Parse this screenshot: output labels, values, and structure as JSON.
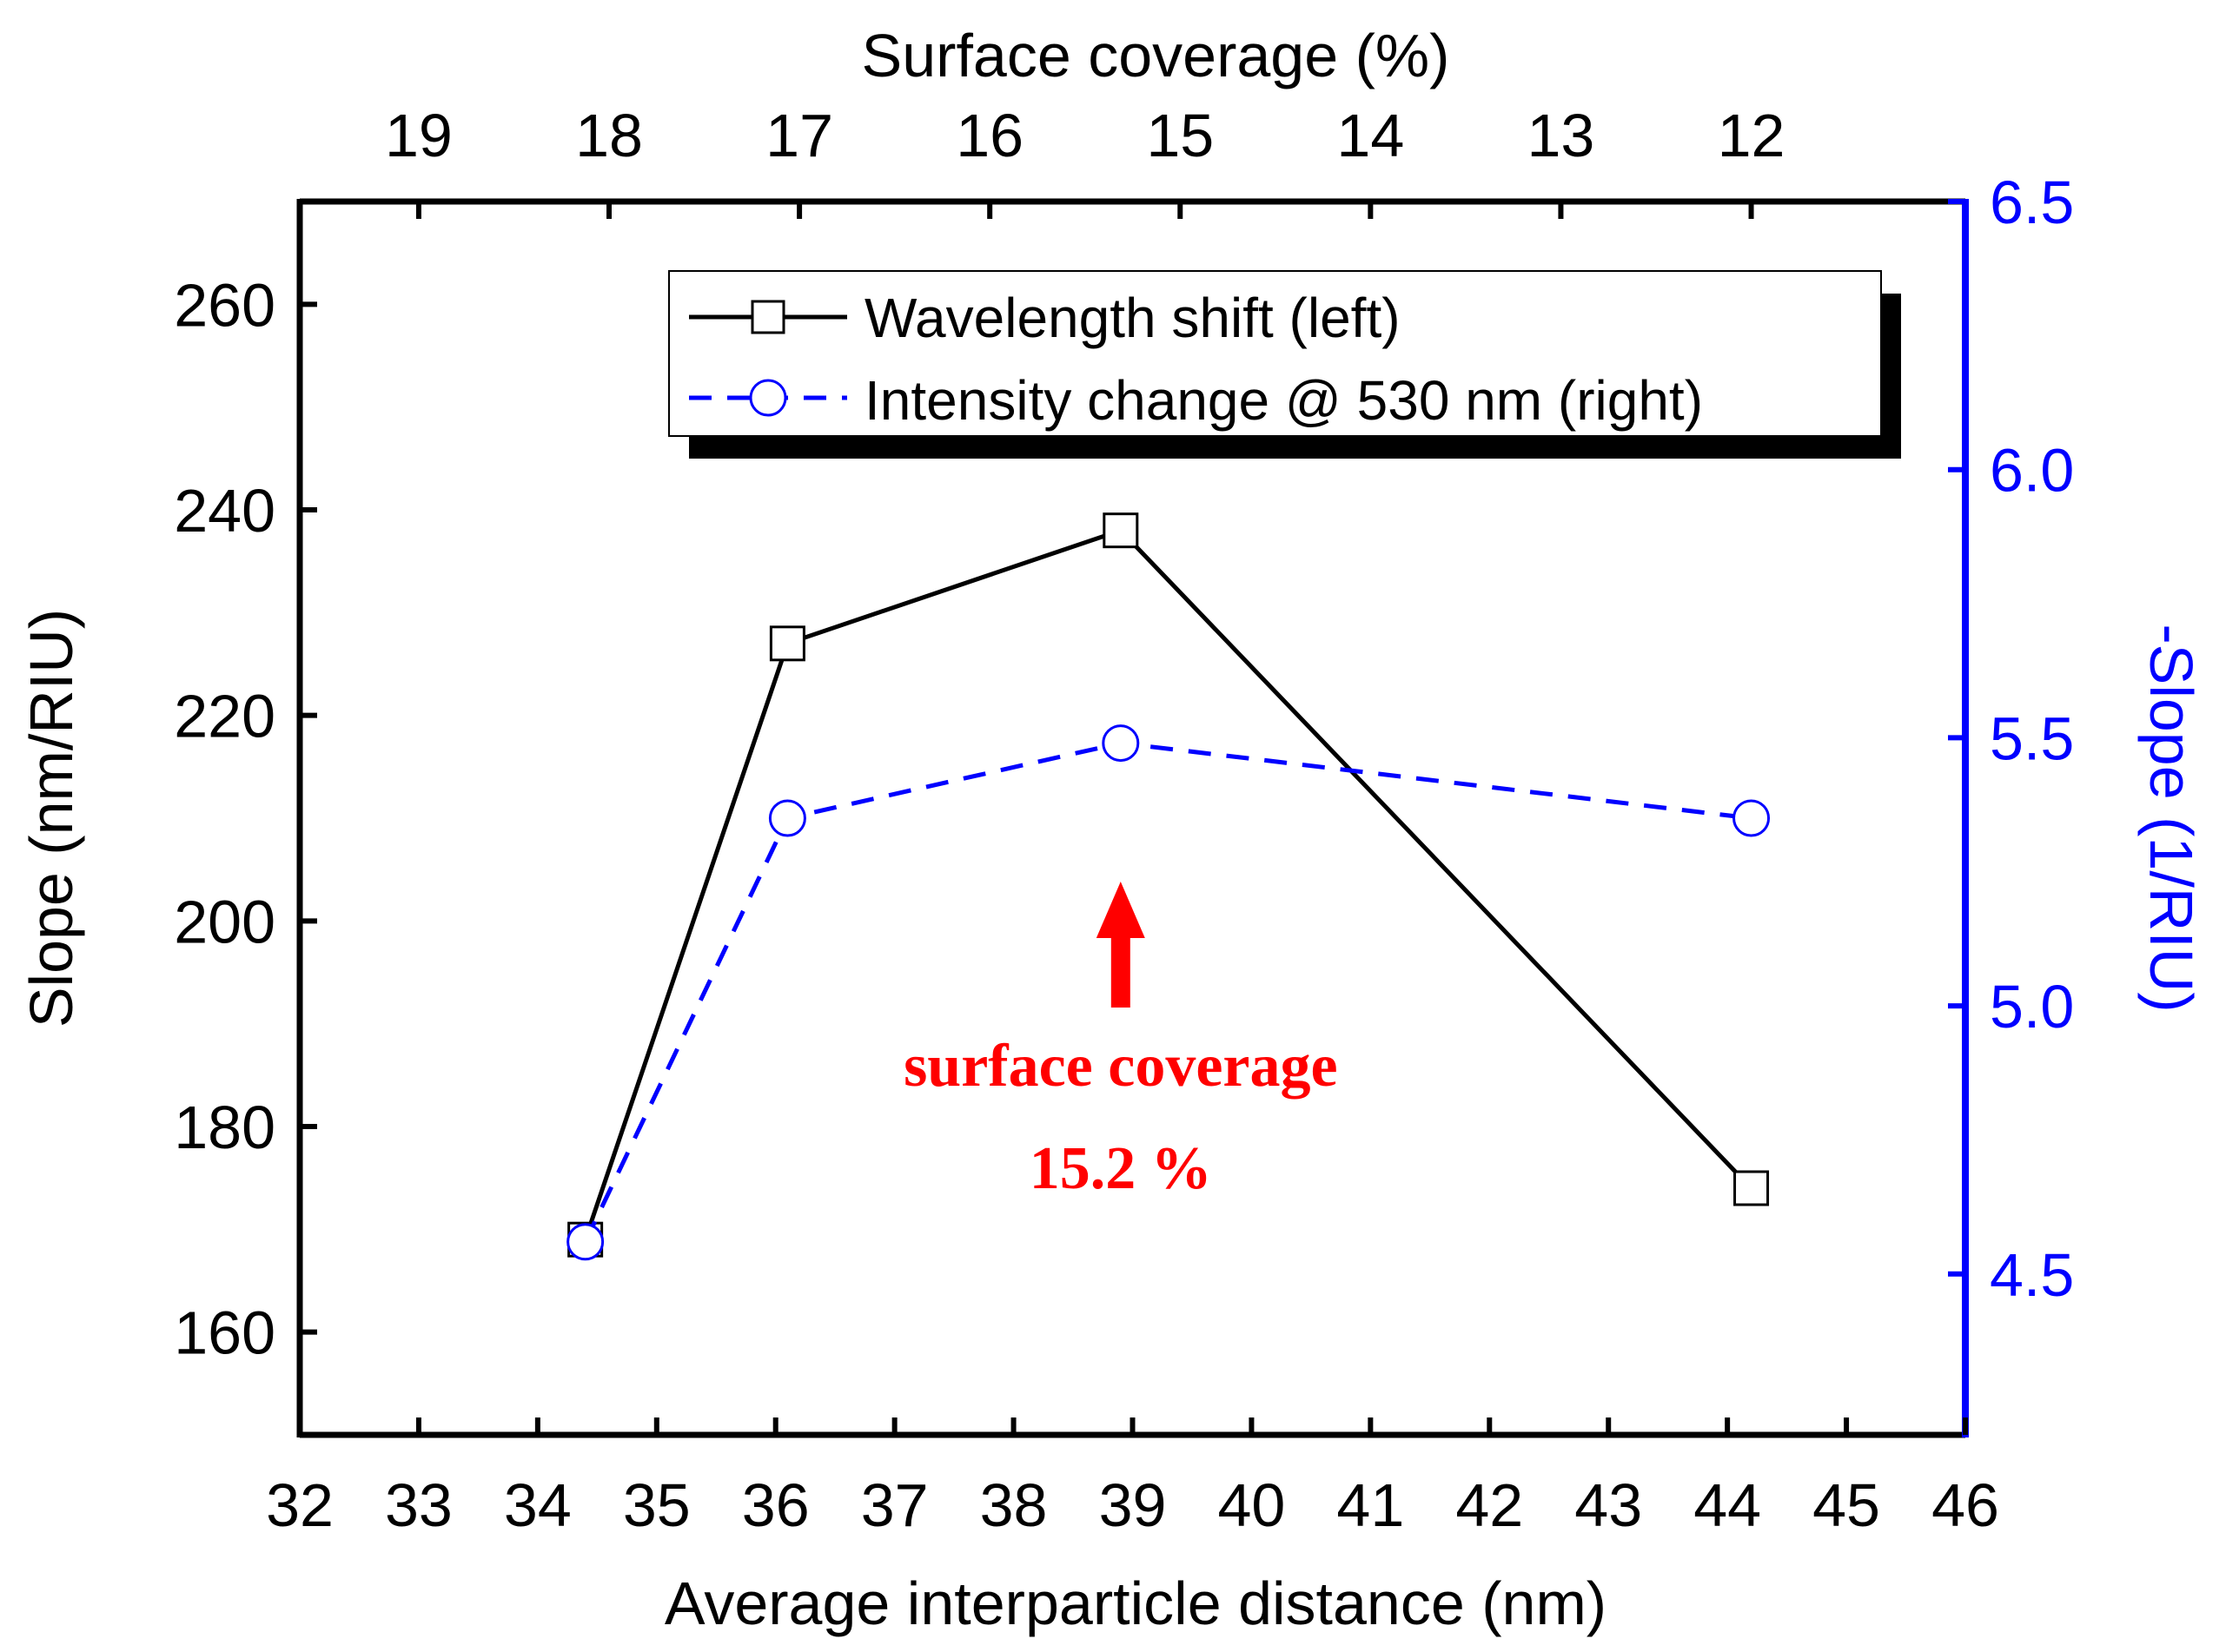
{
  "chart_data": {
    "type": "line",
    "xlabel": "Average interparticle distance (nm)",
    "x_top_label": "Surface coverage (%)",
    "ylabel_left": "Slope (nm/RIU)",
    "ylabel_right": "-Slope (1/RIU)",
    "xlim": [
      32,
      46
    ],
    "ylim_left": [
      150,
      270
    ],
    "ylim_right": [
      4.2,
      6.5
    ],
    "x_ticks": [
      32,
      33,
      34,
      35,
      36,
      37,
      38,
      39,
      40,
      41,
      42,
      43,
      44,
      45,
      46
    ],
    "top_ticks": [
      {
        "label": "19",
        "x": 33.0
      },
      {
        "label": "18",
        "x": 34.6
      },
      {
        "label": "17",
        "x": 36.2
      },
      {
        "label": "16",
        "x": 37.8
      },
      {
        "label": "15",
        "x": 39.4
      },
      {
        "label": "14",
        "x": 41.0
      },
      {
        "label": "13",
        "x": 42.6
      },
      {
        "label": "12",
        "x": 44.2
      }
    ],
    "left_ticks": [
      160,
      180,
      200,
      220,
      240,
      260
    ],
    "right_ticks": [
      "4.5",
      "5.0",
      "5.5",
      "6.0",
      "6.5"
    ],
    "series": [
      {
        "name": "Wavelength shift (left)",
        "axis": "left",
        "marker": "square",
        "line": "solid",
        "color": "#000000",
        "x": [
          34.4,
          36.1,
          38.9,
          44.2
        ],
        "y": [
          169,
          227,
          238,
          174
        ]
      },
      {
        "name": "Intensity change @ 530 nm (right)",
        "axis": "right",
        "marker": "circle",
        "line": "dashed",
        "color": "#0000ff",
        "x": [
          34.4,
          36.1,
          38.9,
          44.2
        ],
        "y": [
          4.56,
          5.35,
          5.49,
          5.35
        ]
      }
    ],
    "annotation": {
      "lines": [
        "surface coverage",
        "15.2 %"
      ],
      "color": "#ff0000",
      "arrow_x": 38.9
    },
    "legend_position": "top-right",
    "grid": false
  }
}
